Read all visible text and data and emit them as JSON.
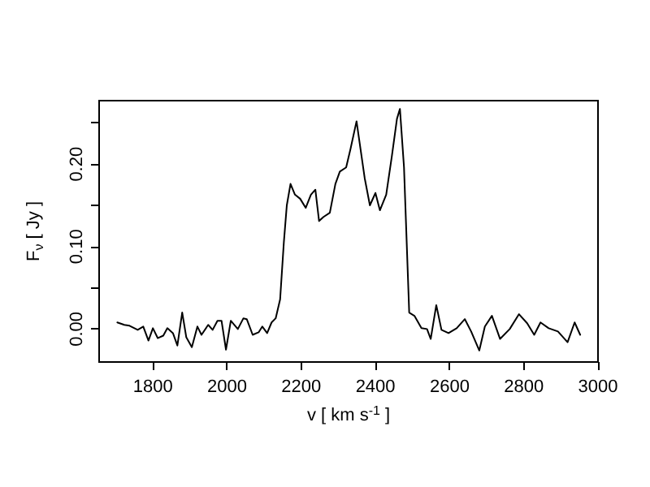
{
  "chart_data": {
    "type": "line",
    "xlabel": "v [ km s$^{-1}$ ]",
    "ylabel": "F$_{ν}$ [ Jy ]",
    "xlim": [
      1655,
      3000
    ],
    "xticks": [
      1800,
      2000,
      2200,
      2400,
      2600,
      2800,
      3000
    ],
    "ylim": [
      -0.04,
      0.277
    ],
    "yticks": [
      {
        "value": 0,
        "label": "0.00"
      },
      {
        "value": 0.05,
        "label": null
      },
      {
        "value": 0.1,
        "label": "0.10"
      },
      {
        "value": 0.15,
        "label": null
      },
      {
        "value": 0.2,
        "label": "0.20"
      },
      {
        "value": 0.25,
        "label": null
      }
    ],
    "grid": false,
    "marker": "none",
    "line_style": "solid",
    "series": [
      {
        "color": "#000000",
        "x": [
          1704,
          1723,
          1737,
          1759,
          1774,
          1788,
          1800,
          1813,
          1828,
          1839,
          1854,
          1866,
          1879,
          1890,
          1905,
          1920,
          1931,
          1949,
          1961,
          1974,
          1985,
          1997,
          2010,
          2029,
          2044,
          2053,
          2069,
          2085,
          2095,
          2108,
          2120,
          2131,
          2143,
          2153,
          2161,
          2171,
          2183,
          2197,
          2212,
          2226,
          2238,
          2248,
          2260,
          2277,
          2292,
          2304,
          2321,
          2333,
          2349,
          2371,
          2385,
          2400,
          2412,
          2429,
          2444,
          2458,
          2466,
          2477,
          2491,
          2505,
          2524,
          2539,
          2549,
          2564,
          2578,
          2597,
          2619,
          2641,
          2658,
          2680,
          2695,
          2714,
          2736,
          2762,
          2787,
          2809,
          2828,
          2845,
          2867,
          2892,
          2918,
          2937,
          2952
        ],
        "values": [
          0.008,
          0.005,
          0.004,
          -0.001,
          0.003,
          -0.014,
          0.001,
          -0.011,
          -0.008,
          0.001,
          -0.005,
          -0.02,
          0.02,
          -0.01,
          -0.022,
          0.003,
          -0.007,
          0.005,
          -0.001,
          0.01,
          0.01,
          -0.025,
          0.01,
          0,
          0.013,
          0.012,
          -0.007,
          -0.004,
          0.003,
          -0.005,
          0.008,
          0.013,
          0.036,
          0.105,
          0.15,
          0.176,
          0.163,
          0.158,
          0.147,
          0.163,
          0.169,
          0.131,
          0.136,
          0.141,
          0.176,
          0.191,
          0.196,
          0.219,
          0.252,
          0.183,
          0.15,
          0.165,
          0.144,
          0.163,
          0.209,
          0.255,
          0.267,
          0.196,
          0.02,
          0.016,
          0.001,
          0,
          -0.012,
          0.029,
          -0.001,
          -0.005,
          0.001,
          0.012,
          -0.003,
          -0.026,
          0.003,
          0.016,
          -0.012,
          0,
          0.018,
          0.007,
          -0.007,
          0.008,
          0.001,
          -0.003,
          -0.016,
          0.008,
          -0.007
        ]
      }
    ]
  }
}
